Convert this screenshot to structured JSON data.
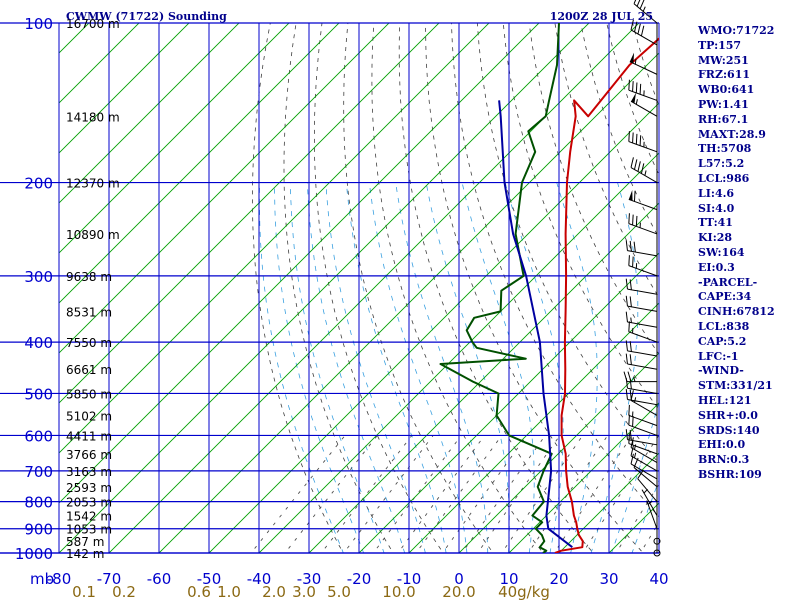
{
  "chart_data": {
    "type": "line",
    "title": "CWMW (71722) Sounding",
    "valid_time": "1200Z 28 JUL 25",
    "x_units_label": "mb",
    "y_axis": {
      "scale": "log",
      "range": [
        1000,
        100
      ],
      "ticks": [
        100,
        200,
        300,
        400,
        500,
        600,
        700,
        800,
        900,
        1000
      ]
    },
    "x_axis": {
      "range": [
        -80,
        40
      ],
      "ticks": [
        -80,
        -70,
        -60,
        -50,
        -40,
        -30,
        -20,
        -10,
        0,
        10,
        20,
        30,
        40
      ]
    },
    "height_labels": [
      {
        "p": 100,
        "label": "16700 m"
      },
      {
        "p": 150,
        "label": "14180 m"
      },
      {
        "p": 200,
        "label": "12370 m"
      },
      {
        "p": 250,
        "label": "10890 m"
      },
      {
        "p": 300,
        "label": "9638 m"
      },
      {
        "p": 350,
        "label": "8531 m"
      },
      {
        "p": 400,
        "label": "7550 m"
      },
      {
        "p": 450,
        "label": "6661 m"
      },
      {
        "p": 500,
        "label": "5850 m"
      },
      {
        "p": 550,
        "label": "5102 m"
      },
      {
        "p": 600,
        "label": "4411 m"
      },
      {
        "p": 650,
        "label": "3766 m"
      },
      {
        "p": 700,
        "label": "3163 m"
      },
      {
        "p": 750,
        "label": "2593 m"
      },
      {
        "p": 800,
        "label": "2053 m"
      },
      {
        "p": 850,
        "label": "1542 m"
      },
      {
        "p": 900,
        "label": "1053 m"
      },
      {
        "p": 950,
        "label": "587 m"
      },
      {
        "p": 1000,
        "label": "142 m"
      }
    ],
    "mixing_ratio_labels": [
      {
        "label": "0.1",
        "t": -75
      },
      {
        "label": "0.2",
        "t": -67
      },
      {
        "label": "0.6",
        "t": -52
      },
      {
        "label": "1.0",
        "t": -46
      },
      {
        "label": "2.0",
        "t": -37
      },
      {
        "label": "3.0",
        "t": -31
      },
      {
        "label": "5.0",
        "t": -24
      },
      {
        "label": "10.0",
        "t": -12
      },
      {
        "label": "20.0",
        "t": 0
      },
      {
        "label": "40g/kg",
        "t": 13
      }
    ],
    "series": [
      {
        "name": "Temperature",
        "color": "#c80000",
        "points": [
          [
            1000,
            19.2
          ],
          [
            990,
            20.0
          ],
          [
            975,
            23.5
          ],
          [
            950,
            22.4
          ],
          [
            925,
            20.4
          ],
          [
            900,
            18.8
          ],
          [
            875,
            17.3
          ],
          [
            850,
            15.5
          ],
          [
            800,
            12.3
          ],
          [
            750,
            8.5
          ],
          [
            700,
            5.0
          ],
          [
            650,
            1.5
          ],
          [
            600,
            -3.0
          ],
          [
            550,
            -7.0
          ],
          [
            500,
            -10.7
          ],
          [
            450,
            -15.5
          ],
          [
            400,
            -21.0
          ],
          [
            350,
            -27.0
          ],
          [
            300,
            -34.0
          ],
          [
            250,
            -42.5
          ],
          [
            200,
            -52.5
          ],
          [
            175,
            -58.0
          ],
          [
            150,
            -64.0
          ],
          [
            140,
            -67.5
          ],
          [
            150,
            -61.5
          ],
          [
            120,
            -63.5
          ],
          [
            100,
            -62.5
          ]
        ]
      },
      {
        "name": "Dewpoint",
        "color": "#005000",
        "points": [
          [
            1000,
            16.8
          ],
          [
            990,
            17.0
          ],
          [
            975,
            15.0
          ],
          [
            950,
            14.7
          ],
          [
            925,
            13.0
          ],
          [
            900,
            10.5
          ],
          [
            875,
            10.5
          ],
          [
            850,
            7.2
          ],
          [
            800,
            6.7
          ],
          [
            750,
            2.5
          ],
          [
            700,
            0.5
          ],
          [
            650,
            -1.3
          ],
          [
            600,
            -13.5
          ],
          [
            550,
            -20.0
          ],
          [
            500,
            -24.0
          ],
          [
            475,
            -31.5
          ],
          [
            440,
            -41.5
          ],
          [
            430,
            -25.5
          ],
          [
            410,
            -37.5
          ],
          [
            400,
            -39.5
          ],
          [
            380,
            -43.0
          ],
          [
            360,
            -44.0
          ],
          [
            350,
            -40.0
          ],
          [
            320,
            -44.0
          ],
          [
            300,
            -42.5
          ],
          [
            250,
            -52.5
          ],
          [
            200,
            -61.5
          ],
          [
            175,
            -65.0
          ],
          [
            160,
            -70.5
          ],
          [
            150,
            -70.0
          ],
          [
            140,
            -72.5
          ],
          [
            120,
            -78.0
          ],
          [
            100,
            -86.0
          ]
        ]
      },
      {
        "name": "Parcel",
        "color": "#0000a0",
        "points": [
          [
            975,
            21.5
          ],
          [
            900,
            13.0
          ],
          [
            850,
            10.0
          ],
          [
            800,
            7.5
          ],
          [
            700,
            2.0
          ],
          [
            600,
            -5.5
          ],
          [
            500,
            -15.0
          ],
          [
            400,
            -26.0
          ],
          [
            300,
            -42.0
          ],
          [
            250,
            -53.0
          ],
          [
            200,
            -65.0
          ],
          [
            150,
            -79.0
          ],
          [
            140,
            -82.5
          ]
        ]
      }
    ],
    "wind_barbs": [
      {
        "p": 100,
        "dir": 310,
        "spd": 35
      },
      {
        "p": 110,
        "dir": 300,
        "spd": 40
      },
      {
        "p": 125,
        "dir": 295,
        "spd": 55
      },
      {
        "p": 140,
        "dir": 290,
        "spd": 45
      },
      {
        "p": 150,
        "dir": 300,
        "spd": 55
      },
      {
        "p": 175,
        "dir": 290,
        "spd": 45
      },
      {
        "p": 200,
        "dir": 300,
        "spd": 45
      },
      {
        "p": 225,
        "dir": 290,
        "spd": 60
      },
      {
        "p": 250,
        "dir": 290,
        "spd": 35
      },
      {
        "p": 275,
        "dir": 280,
        "spd": 30
      },
      {
        "p": 300,
        "dir": 290,
        "spd": 25
      },
      {
        "p": 325,
        "dir": 280,
        "spd": 20
      },
      {
        "p": 350,
        "dir": 280,
        "spd": 20
      },
      {
        "p": 375,
        "dir": 280,
        "spd": 15
      },
      {
        "p": 400,
        "dir": 290,
        "spd": 15
      },
      {
        "p": 425,
        "dir": 280,
        "spd": 20
      },
      {
        "p": 450,
        "dir": 280,
        "spd": 20
      },
      {
        "p": 475,
        "dir": 270,
        "spd": 25
      },
      {
        "p": 500,
        "dir": 280,
        "spd": 20
      },
      {
        "p": 525,
        "dir": 280,
        "spd": 20
      },
      {
        "p": 550,
        "dir": 300,
        "spd": 15
      },
      {
        "p": 575,
        "dir": 290,
        "spd": 15
      },
      {
        "p": 600,
        "dir": 290,
        "spd": 20
      },
      {
        "p": 625,
        "dir": 280,
        "spd": 20
      },
      {
        "p": 650,
        "dir": 290,
        "spd": 15
      },
      {
        "p": 675,
        "dir": 300,
        "spd": 15
      },
      {
        "p": 700,
        "dir": 300,
        "spd": 15
      },
      {
        "p": 725,
        "dir": 300,
        "spd": 10
      },
      {
        "p": 750,
        "dir": 310,
        "spd": 10
      },
      {
        "p": 800,
        "dir": 320,
        "spd": 10
      },
      {
        "p": 850,
        "dir": 330,
        "spd": 5
      },
      {
        "p": 900,
        "dir": 340,
        "spd": 5
      },
      {
        "p": 950,
        "dir": 0,
        "spd": 0
      },
      {
        "p": 1000,
        "dir": 0,
        "spd": 0
      }
    ],
    "grid": true
  },
  "indices": [
    "WMO:71722",
    "TP:157",
    "MW:251",
    "FRZ:611",
    "WB0:641",
    "PW:1.41",
    "RH:67.1",
    "MAXT:28.9",
    "TH:5708",
    "L57:5.2",
    "LCL:986",
    "LI:4.6",
    "SI:4.0",
    "TT:41",
    "KI:28",
    "SW:164",
    "EI:0.3",
    "-PARCEL-",
    "CAPE:34",
    "CINH:67812",
    "LCL:838",
    "CAP:5.2",
    "LFC:-1",
    "-WIND-",
    "STM:331/21",
    "HEL:121",
    "SHR+:0.0",
    "SRDS:140",
    "EHI:0.0",
    "BRN:0.3",
    "BSHR:109"
  ],
  "colors": {
    "isobar": "#0000cd",
    "isotherm": "#0000cd",
    "dry_adiabat": "#00a000",
    "moist_adiabat": "#404040",
    "mixing_ratio": "#3aa0e0",
    "text": "#00008b"
  }
}
